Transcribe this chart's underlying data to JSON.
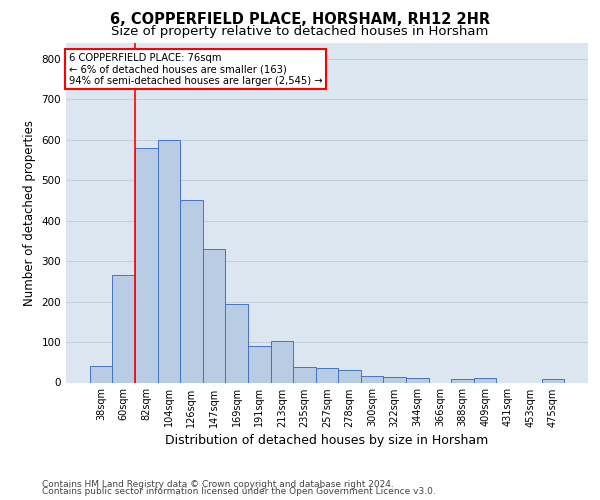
{
  "title": "6, COPPERFIELD PLACE, HORSHAM, RH12 2HR",
  "subtitle": "Size of property relative to detached houses in Horsham",
  "xlabel": "Distribution of detached houses by size in Horsham",
  "ylabel": "Number of detached properties",
  "categories": [
    "38sqm",
    "60sqm",
    "82sqm",
    "104sqm",
    "126sqm",
    "147sqm",
    "169sqm",
    "191sqm",
    "213sqm",
    "235sqm",
    "257sqm",
    "278sqm",
    "300sqm",
    "322sqm",
    "344sqm",
    "366sqm",
    "388sqm",
    "409sqm",
    "431sqm",
    "453sqm",
    "475sqm"
  ],
  "values": [
    40,
    265,
    580,
    600,
    450,
    330,
    195,
    90,
    103,
    38,
    35,
    30,
    15,
    14,
    10,
    0,
    8,
    10,
    0,
    0,
    8
  ],
  "bar_color": "#b8cce4",
  "bar_edge_color": "#4472c4",
  "grid_color": "#c0c8d8",
  "background_color": "#dce6f1",
  "annotation_box_text": "6 COPPERFIELD PLACE: 76sqm\n← 6% of detached houses are smaller (163)\n94% of semi-detached houses are larger (2,545) →",
  "annotation_box_color": "white",
  "annotation_box_edge_color": "red",
  "vline_x_index": 1.5,
  "vline_color": "red",
  "ylim": [
    0,
    840
  ],
  "yticks": [
    0,
    100,
    200,
    300,
    400,
    500,
    600,
    700,
    800
  ],
  "footer_line1": "Contains HM Land Registry data © Crown copyright and database right 2024.",
  "footer_line2": "Contains public sector information licensed under the Open Government Licence v3.0.",
  "title_fontsize": 10.5,
  "subtitle_fontsize": 9.5,
  "tick_fontsize": 7,
  "ylabel_fontsize": 8.5,
  "xlabel_fontsize": 9,
  "footer_fontsize": 6.5
}
